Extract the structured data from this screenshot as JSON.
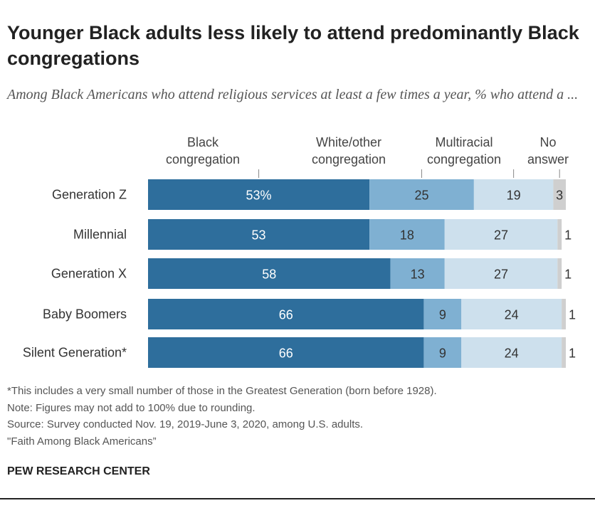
{
  "title": "Younger Black adults less likely to attend predominantly Black congregations",
  "subtitle": "Among Black Americans who attend religious services at least a few times a year, % who attend a ...",
  "notes": [
    "*This includes a very small number of those in the Greatest Generation (born before 1928).",
    "Note: Figures may not add to 100% due to rounding.",
    "Source: Survey conducted Nov. 19, 2019-June 3, 2020, among U.S. adults.",
    "\"Faith Among Black Americans”"
  ],
  "brand": "PEW RESEARCH CENTER",
  "chart_data": {
    "type": "bar",
    "orientation": "horizontal",
    "stacked": true,
    "categories": [
      "Generation Z",
      "Millennial",
      "Generation X",
      "Baby Boomers",
      "Silent Generation*"
    ],
    "series": [
      {
        "name": "Black congregation",
        "values": [
          53,
          53,
          58,
          66,
          66
        ],
        "color": "#2e6e9c"
      },
      {
        "name": "White/other congregation",
        "values": [
          25,
          18,
          13,
          9,
          9
        ],
        "color": "#7fb0d2"
      },
      {
        "name": "Multiracial congregation",
        "values": [
          19,
          27,
          27,
          24,
          24
        ],
        "color": "#cde0ed"
      },
      {
        "name": "No answer",
        "values": [
          3,
          1,
          1,
          1,
          1
        ],
        "color": "#cfcfcf"
      }
    ],
    "percent_suffix_first_row": true,
    "xlim": [
      0,
      100
    ],
    "legend_placement": "top",
    "grid": false
  }
}
